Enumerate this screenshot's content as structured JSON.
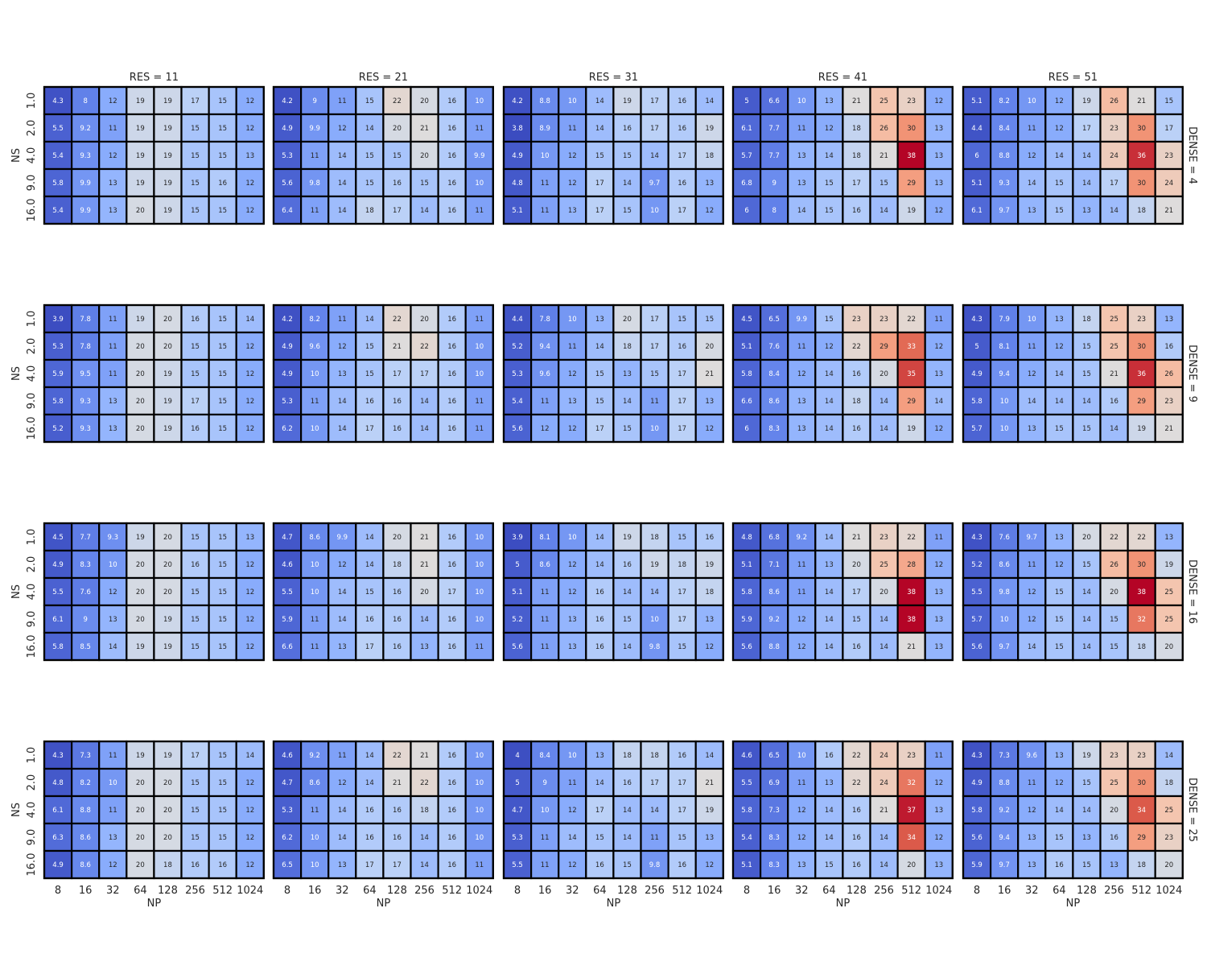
{
  "chart_data": {
    "type": "heatmap",
    "colormap": "coolwarm",
    "vmin": 3.8,
    "vmax": 38,
    "col_facet_labels": [
      "RES = 11",
      "RES = 21",
      "RES = 31",
      "RES = 41",
      "RES = 51"
    ],
    "row_facet_labels": [
      "DENSE = 4",
      "DENSE = 9",
      "DENSE = 16",
      "DENSE = 25"
    ],
    "xlabel": "NP",
    "ylabel": "NS",
    "x_categories": [
      "8",
      "16",
      "32",
      "64",
      "128",
      "256",
      "512",
      "1024"
    ],
    "y_categories": [
      "1.0",
      "2.0",
      "4.0",
      "9.0",
      "16.0"
    ],
    "panels": [
      [
        [
          [
            "4.3",
            "8",
            "12",
            "19",
            "19",
            "17",
            "15",
            "12"
          ],
          [
            "5.5",
            "9.2",
            "11",
            "19",
            "19",
            "15",
            "15",
            "12"
          ],
          [
            "5.4",
            "9.3",
            "12",
            "19",
            "19",
            "15",
            "15",
            "13"
          ],
          [
            "5.8",
            "9.9",
            "13",
            "19",
            "19",
            "15",
            "16",
            "12"
          ],
          [
            "5.4",
            "9.9",
            "13",
            "20",
            "19",
            "15",
            "15",
            "12"
          ]
        ],
        [
          [
            "4.2",
            "9",
            "11",
            "15",
            "22",
            "20",
            "16",
            "10"
          ],
          [
            "4.9",
            "9.9",
            "12",
            "14",
            "20",
            "21",
            "16",
            "11"
          ],
          [
            "5.3",
            "11",
            "14",
            "15",
            "15",
            "20",
            "16",
            "9.9"
          ],
          [
            "5.6",
            "9.8",
            "14",
            "15",
            "16",
            "15",
            "16",
            "10"
          ],
          [
            "6.4",
            "11",
            "14",
            "18",
            "17",
            "14",
            "16",
            "11"
          ]
        ],
        [
          [
            "4.2",
            "8.8",
            "10",
            "14",
            "19",
            "17",
            "16",
            "14"
          ],
          [
            "3.8",
            "8.9",
            "11",
            "14",
            "16",
            "17",
            "16",
            "19"
          ],
          [
            "4.9",
            "10",
            "12",
            "15",
            "15",
            "14",
            "17",
            "18"
          ],
          [
            "4.8",
            "11",
            "12",
            "17",
            "14",
            "9.7",
            "16",
            "13"
          ],
          [
            "5.1",
            "11",
            "13",
            "17",
            "15",
            "10",
            "17",
            "12"
          ]
        ],
        [
          [
            "5",
            "6.6",
            "10",
            "13",
            "21",
            "25",
            "23",
            "12"
          ],
          [
            "6.1",
            "7.7",
            "11",
            "12",
            "18",
            "26",
            "30",
            "13"
          ],
          [
            "5.7",
            "7.7",
            "13",
            "14",
            "18",
            "21",
            "38",
            "13"
          ],
          [
            "6.8",
            "9",
            "13",
            "15",
            "17",
            "15",
            "29",
            "13"
          ],
          [
            "6",
            "8",
            "14",
            "15",
            "16",
            "14",
            "19",
            "12"
          ]
        ],
        [
          [
            "5.1",
            "8.2",
            "10",
            "12",
            "19",
            "26",
            "21",
            "15"
          ],
          [
            "4.4",
            "8.4",
            "11",
            "12",
            "17",
            "23",
            "30",
            "17"
          ],
          [
            "6",
            "8.8",
            "12",
            "14",
            "14",
            "24",
            "36",
            "23"
          ],
          [
            "5.1",
            "9.3",
            "14",
            "15",
            "14",
            "17",
            "30",
            "24"
          ],
          [
            "6.1",
            "9.7",
            "13",
            "15",
            "13",
            "14",
            "18",
            "21"
          ]
        ]
      ],
      [
        [
          [
            "3.9",
            "7.8",
            "11",
            "19",
            "20",
            "16",
            "15",
            "14"
          ],
          [
            "5.3",
            "7.8",
            "11",
            "20",
            "20",
            "15",
            "15",
            "12"
          ],
          [
            "5.9",
            "9.5",
            "11",
            "20",
            "19",
            "15",
            "15",
            "12"
          ],
          [
            "5.8",
            "9.3",
            "13",
            "20",
            "19",
            "17",
            "15",
            "12"
          ],
          [
            "5.2",
            "9.3",
            "13",
            "20",
            "19",
            "16",
            "15",
            "12"
          ]
        ],
        [
          [
            "4.2",
            "8.2",
            "11",
            "14",
            "22",
            "20",
            "16",
            "11"
          ],
          [
            "4.9",
            "9.6",
            "12",
            "15",
            "21",
            "22",
            "16",
            "10"
          ],
          [
            "4.9",
            "10",
            "13",
            "15",
            "17",
            "17",
            "16",
            "10"
          ],
          [
            "5.3",
            "11",
            "14",
            "16",
            "16",
            "14",
            "16",
            "11"
          ],
          [
            "6.2",
            "10",
            "14",
            "17",
            "16",
            "14",
            "16",
            "11"
          ]
        ],
        [
          [
            "4.4",
            "7.8",
            "10",
            "13",
            "20",
            "17",
            "15",
            "15"
          ],
          [
            "5.2",
            "9.4",
            "11",
            "14",
            "18",
            "17",
            "16",
            "20"
          ],
          [
            "5.3",
            "9.6",
            "12",
            "15",
            "13",
            "15",
            "17",
            "21"
          ],
          [
            "5.4",
            "11",
            "13",
            "15",
            "14",
            "11",
            "17",
            "13"
          ],
          [
            "5.6",
            "12",
            "12",
            "17",
            "15",
            "10",
            "17",
            "12"
          ]
        ],
        [
          [
            "4.5",
            "6.5",
            "9.9",
            "15",
            "23",
            "23",
            "22",
            "11"
          ],
          [
            "5.1",
            "7.6",
            "11",
            "12",
            "22",
            "29",
            "33",
            "12"
          ],
          [
            "5.8",
            "8.4",
            "12",
            "14",
            "16",
            "20",
            "35",
            "13"
          ],
          [
            "6.6",
            "8.6",
            "13",
            "14",
            "18",
            "14",
            "29",
            "14"
          ],
          [
            "6",
            "8.3",
            "13",
            "14",
            "16",
            "14",
            "19",
            "12"
          ]
        ],
        [
          [
            "4.3",
            "7.9",
            "10",
            "13",
            "18",
            "25",
            "23",
            "13"
          ],
          [
            "5",
            "8.1",
            "11",
            "12",
            "15",
            "25",
            "30",
            "16"
          ],
          [
            "4.9",
            "9.4",
            "12",
            "14",
            "15",
            "21",
            "36",
            "26"
          ],
          [
            "5.8",
            "10",
            "14",
            "14",
            "14",
            "16",
            "29",
            "23"
          ],
          [
            "5.7",
            "10",
            "13",
            "15",
            "15",
            "14",
            "19",
            "21"
          ]
        ]
      ],
      [
        [
          [
            "4.5",
            "7.7",
            "9.3",
            "19",
            "20",
            "15",
            "15",
            "13"
          ],
          [
            "4.9",
            "8.3",
            "10",
            "20",
            "20",
            "16",
            "15",
            "12"
          ],
          [
            "5.5",
            "7.6",
            "12",
            "20",
            "20",
            "15",
            "15",
            "12"
          ],
          [
            "6.1",
            "9",
            "13",
            "20",
            "19",
            "15",
            "15",
            "12"
          ],
          [
            "5.8",
            "8.5",
            "14",
            "19",
            "19",
            "15",
            "15",
            "12"
          ]
        ],
        [
          [
            "4.7",
            "8.6",
            "9.9",
            "14",
            "20",
            "21",
            "16",
            "10"
          ],
          [
            "4.6",
            "10",
            "12",
            "14",
            "18",
            "21",
            "16",
            "10"
          ],
          [
            "5.5",
            "10",
            "14",
            "15",
            "16",
            "20",
            "17",
            "10"
          ],
          [
            "5.9",
            "11",
            "14",
            "16",
            "16",
            "14",
            "16",
            "10"
          ],
          [
            "6.6",
            "11",
            "13",
            "17",
            "16",
            "13",
            "16",
            "11"
          ]
        ],
        [
          [
            "3.9",
            "8.1",
            "10",
            "14",
            "19",
            "18",
            "15",
            "16"
          ],
          [
            "5",
            "8.6",
            "12",
            "14",
            "16",
            "19",
            "18",
            "19"
          ],
          [
            "5.1",
            "11",
            "12",
            "16",
            "14",
            "14",
            "17",
            "18"
          ],
          [
            "5.2",
            "11",
            "13",
            "16",
            "15",
            "10",
            "17",
            "13"
          ],
          [
            "5.6",
            "11",
            "13",
            "16",
            "14",
            "9.8",
            "15",
            "12"
          ]
        ],
        [
          [
            "4.8",
            "6.8",
            "9.2",
            "14",
            "21",
            "23",
            "22",
            "11"
          ],
          [
            "5.1",
            "7.1",
            "11",
            "13",
            "20",
            "25",
            "28",
            "12"
          ],
          [
            "5.8",
            "8.6",
            "11",
            "14",
            "17",
            "20",
            "38",
            "13"
          ],
          [
            "5.9",
            "9.2",
            "12",
            "14",
            "15",
            "14",
            "38",
            "13"
          ],
          [
            "5.6",
            "8.8",
            "12",
            "14",
            "16",
            "14",
            "21",
            "13"
          ]
        ],
        [
          [
            "4.3",
            "7.6",
            "9.7",
            "13",
            "20",
            "22",
            "22",
            "13"
          ],
          [
            "5.2",
            "8.6",
            "11",
            "12",
            "15",
            "26",
            "30",
            "19"
          ],
          [
            "5.5",
            "9.8",
            "12",
            "15",
            "14",
            "20",
            "38",
            "25"
          ],
          [
            "5.7",
            "10",
            "12",
            "15",
            "14",
            "15",
            "32",
            "25"
          ],
          [
            "5.6",
            "9.7",
            "14",
            "15",
            "14",
            "15",
            "18",
            "20"
          ]
        ]
      ],
      [
        [
          [
            "4.3",
            "7.3",
            "11",
            "19",
            "19",
            "17",
            "15",
            "14"
          ],
          [
            "4.8",
            "8.2",
            "10",
            "20",
            "20",
            "15",
            "15",
            "12"
          ],
          [
            "6.1",
            "8.8",
            "11",
            "20",
            "20",
            "15",
            "15",
            "12"
          ],
          [
            "6.3",
            "8.6",
            "13",
            "20",
            "20",
            "15",
            "15",
            "12"
          ],
          [
            "4.9",
            "8.6",
            "12",
            "20",
            "18",
            "16",
            "16",
            "12"
          ]
        ],
        [
          [
            "4.6",
            "9.2",
            "11",
            "14",
            "22",
            "21",
            "16",
            "10"
          ],
          [
            "4.7",
            "8.6",
            "12",
            "14",
            "21",
            "22",
            "16",
            "10"
          ],
          [
            "5.3",
            "11",
            "14",
            "16",
            "16",
            "18",
            "16",
            "10"
          ],
          [
            "6.2",
            "10",
            "14",
            "16",
            "16",
            "14",
            "16",
            "10"
          ],
          [
            "6.5",
            "10",
            "13",
            "17",
            "17",
            "14",
            "16",
            "11"
          ]
        ],
        [
          [
            "4",
            "8.4",
            "10",
            "13",
            "18",
            "18",
            "16",
            "14"
          ],
          [
            "5",
            "9",
            "11",
            "14",
            "16",
            "17",
            "17",
            "21"
          ],
          [
            "4.7",
            "10",
            "12",
            "17",
            "14",
            "14",
            "17",
            "19"
          ],
          [
            "5.3",
            "11",
            "14",
            "15",
            "14",
            "11",
            "15",
            "13"
          ],
          [
            "5.5",
            "11",
            "12",
            "16",
            "15",
            "9.8",
            "16",
            "12"
          ]
        ],
        [
          [
            "4.6",
            "6.5",
            "10",
            "16",
            "22",
            "24",
            "23",
            "11"
          ],
          [
            "5.5",
            "6.9",
            "11",
            "13",
            "22",
            "24",
            "32",
            "12"
          ],
          [
            "5.8",
            "7.3",
            "12",
            "14",
            "16",
            "21",
            "37",
            "13"
          ],
          [
            "5.4",
            "8.3",
            "12",
            "14",
            "16",
            "14",
            "34",
            "12"
          ],
          [
            "5.1",
            "8.3",
            "13",
            "15",
            "16",
            "14",
            "20",
            "13"
          ]
        ],
        [
          [
            "4.3",
            "7.3",
            "9.6",
            "13",
            "19",
            "23",
            "23",
            "14"
          ],
          [
            "4.9",
            "8.8",
            "11",
            "12",
            "15",
            "25",
            "30",
            "18"
          ],
          [
            "5.8",
            "9.2",
            "12",
            "14",
            "14",
            "20",
            "34",
            "25"
          ],
          [
            "5.6",
            "9.4",
            "13",
            "15",
            "13",
            "16",
            "29",
            "23"
          ],
          [
            "5.9",
            "9.7",
            "13",
            "16",
            "15",
            "13",
            "18",
            "20"
          ]
        ]
      ]
    ]
  }
}
